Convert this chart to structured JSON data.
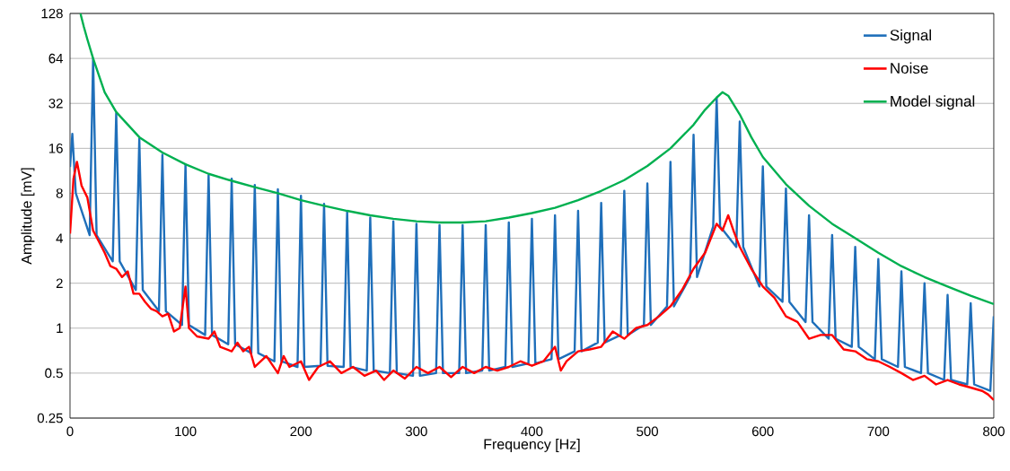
{
  "chart_data": {
    "type": "line",
    "xlabel": "Frequency [Hz]",
    "ylabel": "Amplitude [mV]",
    "log": "y",
    "grid": "y",
    "legend": "top right",
    "line_style": "solid",
    "marker": "none",
    "xlim": [
      0,
      800
    ],
    "xticks": [
      0,
      100,
      200,
      300,
      400,
      500,
      600,
      700,
      800
    ],
    "ylim": [
      0.25,
      128
    ],
    "yticks": [
      0.25,
      0.5,
      1,
      2,
      4,
      8,
      16,
      32,
      64,
      128
    ],
    "series": [
      {
        "name": "Signal",
        "color": "#1f6fba",
        "x": [
          0,
          2,
          5,
          17,
          20,
          23,
          37,
          40,
          43,
          57,
          60,
          63,
          77,
          80,
          83,
          97,
          100,
          103,
          117,
          120,
          123,
          137,
          140,
          143,
          157,
          160,
          163,
          177,
          180,
          183,
          197,
          200,
          203,
          217,
          220,
          223,
          237,
          240,
          243,
          257,
          260,
          263,
          277,
          280,
          283,
          297,
          300,
          303,
          317,
          320,
          323,
          337,
          340,
          343,
          357,
          360,
          363,
          377,
          380,
          383,
          397,
          400,
          403,
          417,
          420,
          423,
          437,
          440,
          443,
          457,
          460,
          463,
          477,
          480,
          483,
          497,
          500,
          503,
          517,
          520,
          523,
          537,
          540,
          543,
          557,
          560,
          563,
          577,
          580,
          583,
          597,
          600,
          603,
          617,
          620,
          623,
          637,
          640,
          643,
          657,
          660,
          663,
          677,
          680,
          683,
          697,
          700,
          703,
          717,
          720,
          723,
          737,
          740,
          743,
          757,
          760,
          763,
          777,
          780,
          783,
          797,
          800
        ],
        "values": [
          12,
          20,
          8,
          4.2,
          64,
          4.2,
          2.8,
          27.5,
          2.8,
          1.8,
          18.6,
          1.8,
          1.3,
          14.5,
          1.3,
          1.05,
          12.5,
          1.05,
          0.9,
          10.6,
          0.9,
          0.78,
          10,
          0.78,
          0.68,
          9.1,
          0.68,
          0.6,
          8.5,
          0.6,
          0.55,
          7.7,
          0.55,
          0.56,
          6.8,
          0.56,
          0.55,
          6,
          0.55,
          0.52,
          5.5,
          0.52,
          0.5,
          5.2,
          0.5,
          0.48,
          5,
          0.48,
          0.5,
          4.9,
          0.5,
          0.5,
          4.9,
          0.5,
          0.52,
          4.9,
          0.52,
          0.55,
          5.1,
          0.55,
          0.58,
          5.4,
          0.58,
          0.62,
          5.7,
          0.62,
          0.7,
          6.1,
          0.7,
          0.8,
          6.9,
          0.8,
          0.9,
          8.3,
          0.9,
          1.05,
          9.3,
          1.05,
          1.4,
          13,
          1.4,
          2.2,
          19.7,
          2.2,
          4.8,
          34.8,
          4.8,
          3.5,
          24.2,
          3.5,
          1.9,
          12.1,
          1.9,
          1.5,
          8.6,
          1.5,
          1.1,
          5.7,
          1.1,
          0.85,
          4.2,
          0.85,
          0.75,
          3.5,
          0.75,
          0.62,
          2.9,
          0.62,
          0.55,
          2.4,
          0.55,
          0.5,
          2,
          0.5,
          0.45,
          1.67,
          0.45,
          0.42,
          1.47,
          0.42,
          0.38,
          1.2
        ]
      },
      {
        "name": "Noise",
        "color": "#ff0000",
        "x": [
          0,
          3,
          6,
          10,
          15,
          20,
          25,
          30,
          35,
          40,
          45,
          50,
          55,
          60,
          65,
          70,
          75,
          80,
          85,
          90,
          95,
          100,
          103,
          110,
          120,
          125,
          130,
          140,
          145,
          150,
          155,
          160,
          170,
          180,
          185,
          190,
          200,
          207,
          215,
          225,
          235,
          245,
          255,
          265,
          272,
          280,
          290,
          300,
          310,
          320,
          330,
          340,
          350,
          360,
          370,
          380,
          390,
          400,
          410,
          420,
          425,
          430,
          440,
          450,
          460,
          470,
          480,
          490,
          500,
          510,
          520,
          530,
          540,
          550,
          560,
          565,
          570,
          575,
          580,
          590,
          600,
          610,
          620,
          630,
          640,
          650,
          660,
          670,
          680,
          690,
          700,
          710,
          720,
          730,
          740,
          750,
          760,
          770,
          780,
          790,
          795,
          800
        ],
        "values": [
          4.3,
          10,
          13,
          9,
          7.5,
          4.5,
          3.8,
          3.2,
          2.6,
          2.5,
          2.2,
          2.4,
          1.7,
          1.7,
          1.5,
          1.35,
          1.3,
          1.2,
          1.25,
          0.95,
          1,
          1.9,
          1,
          0.88,
          0.85,
          0.95,
          0.75,
          0.7,
          0.8,
          0.7,
          0.75,
          0.55,
          0.65,
          0.5,
          0.65,
          0.55,
          0.6,
          0.45,
          0.55,
          0.6,
          0.5,
          0.55,
          0.48,
          0.52,
          0.45,
          0.52,
          0.46,
          0.55,
          0.5,
          0.55,
          0.47,
          0.55,
          0.5,
          0.55,
          0.52,
          0.55,
          0.6,
          0.56,
          0.6,
          0.75,
          0.52,
          0.6,
          0.7,
          0.72,
          0.75,
          0.95,
          0.85,
          1,
          1.05,
          1.2,
          1.4,
          1.8,
          2.5,
          3.2,
          5,
          4.5,
          5.7,
          4.4,
          3.5,
          2.5,
          1.9,
          1.6,
          1.2,
          1.1,
          0.85,
          0.9,
          0.9,
          0.72,
          0.7,
          0.62,
          0.6,
          0.55,
          0.5,
          0.45,
          0.48,
          0.42,
          0.45,
          0.42,
          0.4,
          0.38,
          0.36,
          0.33
        ]
      },
      {
        "name": "Model signal",
        "color": "#00b050",
        "x": [
          9,
          12,
          15,
          20,
          30,
          40,
          60,
          80,
          100,
          120,
          140,
          160,
          180,
          200,
          220,
          240,
          260,
          280,
          300,
          320,
          340,
          360,
          380,
          400,
          420,
          440,
          460,
          480,
          500,
          520,
          540,
          550,
          560,
          565,
          570,
          580,
          590,
          600,
          620,
          640,
          660,
          680,
          700,
          720,
          740,
          760,
          780,
          800
        ],
        "values": [
          128,
          104,
          86,
          64,
          38,
          28,
          19,
          15,
          12.5,
          10.8,
          9.7,
          8.8,
          8,
          7.2,
          6.6,
          6.1,
          5.7,
          5.4,
          5.2,
          5.1,
          5.1,
          5.2,
          5.5,
          5.9,
          6.4,
          7.2,
          8.3,
          9.8,
          12.2,
          16,
          23,
          29,
          35,
          38,
          36,
          27,
          19,
          14,
          9.2,
          6.6,
          5,
          4,
          3.2,
          2.6,
          2.2,
          1.9,
          1.65,
          1.45
        ]
      }
    ]
  }
}
